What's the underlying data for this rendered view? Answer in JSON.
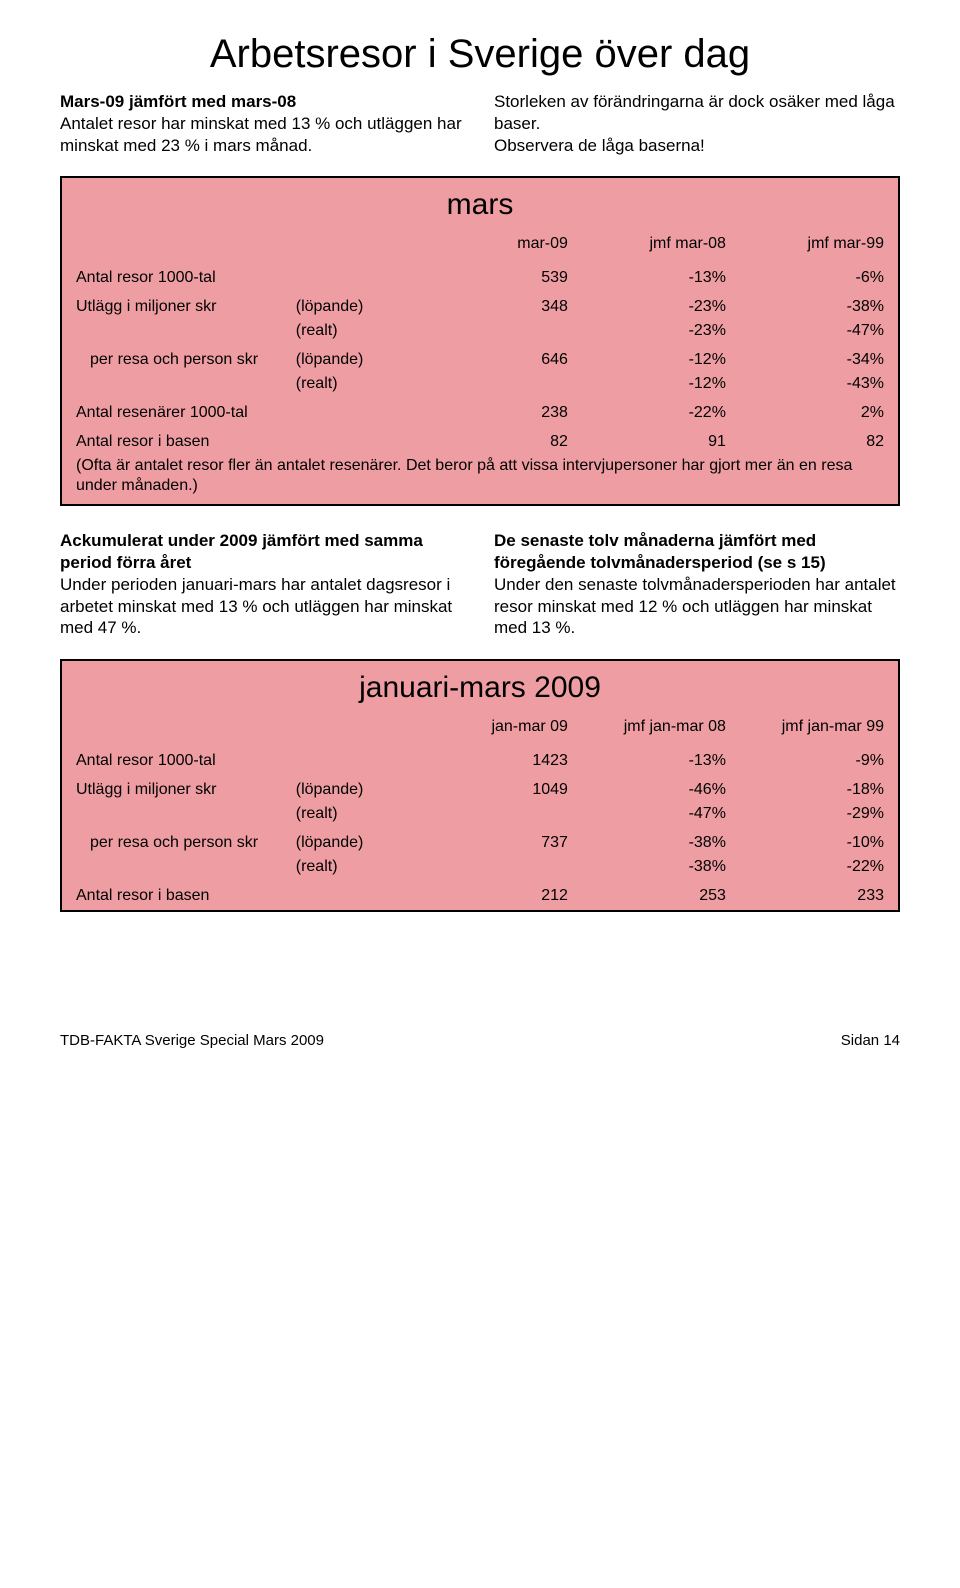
{
  "title": "Arbetsresor i Sverige över dag",
  "intro": {
    "left_lead": "Mars-09 jämfört med mars-08",
    "left_body": "Antalet resor har minskat med 13 % och utläggen har minskat med 23 % i mars månad.",
    "right_body_a": "Storleken av förändringarna är dock osäker med låga baser.",
    "right_body_b": "Observera de låga baserna!"
  },
  "table_mars": {
    "bg": "#ee9ea2",
    "title": "mars",
    "headers": [
      "",
      "",
      "mar-09",
      "jmf mar-08",
      "jmf mar-99"
    ],
    "rows": [
      {
        "label": "Antal resor 1000-tal",
        "sub": "",
        "v1": "539",
        "v2": "-13%",
        "v3": "-6%"
      },
      {
        "label": "Utlägg i miljoner skr",
        "sub": "(löpande)",
        "v1": "348",
        "v2": "-23%",
        "v3": "-38%"
      },
      {
        "label": "",
        "sub": "(realt)",
        "v1": "",
        "v2": "-23%",
        "v3": "-47%"
      },
      {
        "label": "per resa och person skr",
        "sub": "(löpande)",
        "v1": "646",
        "v2": "-12%",
        "v3": "-34%",
        "indent": true
      },
      {
        "label": "",
        "sub": "(realt)",
        "v1": "",
        "v2": "-12%",
        "v3": "-43%"
      },
      {
        "label": "Antal resenärer 1000-tal",
        "sub": "",
        "v1": "238",
        "v2": "-22%",
        "v3": "2%"
      },
      {
        "label": "Antal resor i basen",
        "sub": "",
        "v1": "82",
        "v2": "91",
        "v3": "82"
      }
    ],
    "footnote": "(Ofta är antalet resor fler än antalet resenärer. Det beror på att vissa intervjupersoner har gjort mer än en resa under månaden.)"
  },
  "mid": {
    "left_lead": "Ackumulerat under 2009 jämfört med samma period förra året",
    "left_body": "Under perioden januari-mars har antalet dagsresor i arbetet minskat med 13 % och utläggen har minskat med 47 %.",
    "right_lead": "De senaste tolv månaderna jämfört med föregående tolvmånadersperiod (se s 15)",
    "right_body": "Under den senaste tolvmånadersperioden har antalet resor minskat med 12 % och utläggen har minskat med 13 %."
  },
  "table_janmar": {
    "bg": "#ee9ea2",
    "title": "januari-mars 2009",
    "headers": [
      "",
      "",
      "jan-mar 09",
      "jmf jan-mar 08",
      "jmf jan-mar 99"
    ],
    "rows": [
      {
        "label": "Antal resor 1000-tal",
        "sub": "",
        "v1": "1423",
        "v2": "-13%",
        "v3": "-9%"
      },
      {
        "label": "Utlägg i miljoner skr",
        "sub": "(löpande)",
        "v1": "1049",
        "v2": "-46%",
        "v3": "-18%"
      },
      {
        "label": "",
        "sub": "(realt)",
        "v1": "",
        "v2": "-47%",
        "v3": "-29%"
      },
      {
        "label": "per resa och person skr",
        "sub": "(löpande)",
        "v1": "737",
        "v2": "-38%",
        "v3": "-10%",
        "indent": true
      },
      {
        "label": "",
        "sub": "(realt)",
        "v1": "",
        "v2": "-38%",
        "v3": "-22%"
      },
      {
        "label": "Antal resor i basen",
        "sub": "",
        "v1": "212",
        "v2": "253",
        "v3": "233"
      }
    ]
  },
  "footer": {
    "left": "TDB-FAKTA Sverige Special Mars 2009",
    "right": "Sidan 14"
  }
}
